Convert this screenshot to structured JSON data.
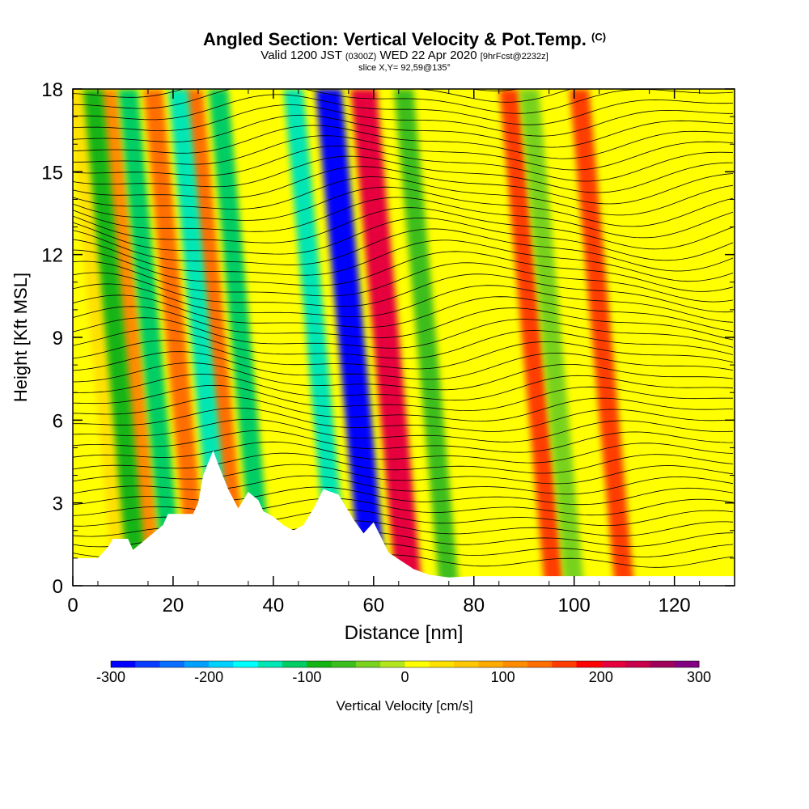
{
  "title": {
    "main": "Angled Section: Vertical Velocity & Pot.Temp.",
    "main_tag": "(C)",
    "valid_prefix": "Valid 1200 JST",
    "valid_zulu": "(0300Z)",
    "valid_date": "WED 22 Apr 2020",
    "valid_fcst": "[9hrFcst@2232z]",
    "slice": "slice X,Y= 92,59@135°"
  },
  "chart_data": {
    "type": "heatmap",
    "xlabel": "Distance [nm]",
    "ylabel": "Height [Kft MSL]",
    "xlim": [
      0,
      132
    ],
    "ylim": [
      0,
      18
    ],
    "x_ticks": [
      0,
      20,
      40,
      60,
      80,
      100,
      120
    ],
    "y_ticks": [
      0,
      3,
      6,
      9,
      12,
      15,
      18
    ],
    "colorbar": {
      "label": "Vertical Velocity [cm/s]",
      "min": -300,
      "max": 300,
      "step": 25,
      "tick_values": [
        -300,
        -200,
        -100,
        0,
        100,
        200,
        300
      ],
      "colors": [
        "#0000ff",
        "#0a3cff",
        "#0a6eff",
        "#00a0ff",
        "#00d2ff",
        "#00ffff",
        "#00e6b4",
        "#00cd64",
        "#14b414",
        "#3cbe1e",
        "#78d21e",
        "#b4e61e",
        "#ffff00",
        "#ffe100",
        "#ffc800",
        "#ffaa00",
        "#ff8c00",
        "#ff6e00",
        "#ff3c00",
        "#ff0000",
        "#e6003c",
        "#c8004b",
        "#a0005a",
        "#800080"
      ]
    },
    "contour_variable": "Potential temperature (C)",
    "updraft_columns": [
      {
        "x_nm": 10,
        "vv_cms": 40
      },
      {
        "x_nm": 16,
        "vv_cms": 110
      },
      {
        "x_nm": 25,
        "vv_cms": 140
      },
      {
        "x_nm": 33,
        "vv_cms": 130
      },
      {
        "x_nm": 67,
        "vv_cms": 220
      },
      {
        "x_nm": 96,
        "vv_cms": 150
      },
      {
        "x_nm": 110,
        "vv_cms": 150
      }
    ],
    "downdraft_columns": [
      {
        "x_nm": 13,
        "vv_cms": -90
      },
      {
        "x_nm": 20,
        "vv_cms": -110
      },
      {
        "x_nm": 30,
        "vv_cms": -150
      },
      {
        "x_nm": 38,
        "vv_cms": -110
      },
      {
        "x_nm": 53,
        "vv_cms": -150
      },
      {
        "x_nm": 60,
        "vv_cms": -300
      },
      {
        "x_nm": 75,
        "vv_cms": -60
      },
      {
        "x_nm": 100,
        "vv_cms": -50
      }
    ],
    "terrain_profile": {
      "x_nm": [
        0,
        5,
        7,
        8,
        11,
        12,
        18,
        19,
        24,
        25,
        26,
        28,
        29,
        31,
        33,
        35,
        37,
        38,
        40,
        42,
        44,
        46,
        48,
        50,
        53,
        56,
        58,
        60,
        63,
        68,
        71,
        75,
        80,
        132
      ],
      "height_kft": [
        1.0,
        1.0,
        1.4,
        1.7,
        1.7,
        1.3,
        2.2,
        2.6,
        2.6,
        3.0,
        4.0,
        4.9,
        4.4,
        3.5,
        2.8,
        3.4,
        3.1,
        2.7,
        2.5,
        2.2,
        2.0,
        2.2,
        2.8,
        3.5,
        3.3,
        2.4,
        1.9,
        2.3,
        1.2,
        0.6,
        0.4,
        0.3,
        0.35,
        0.35
      ]
    }
  }
}
